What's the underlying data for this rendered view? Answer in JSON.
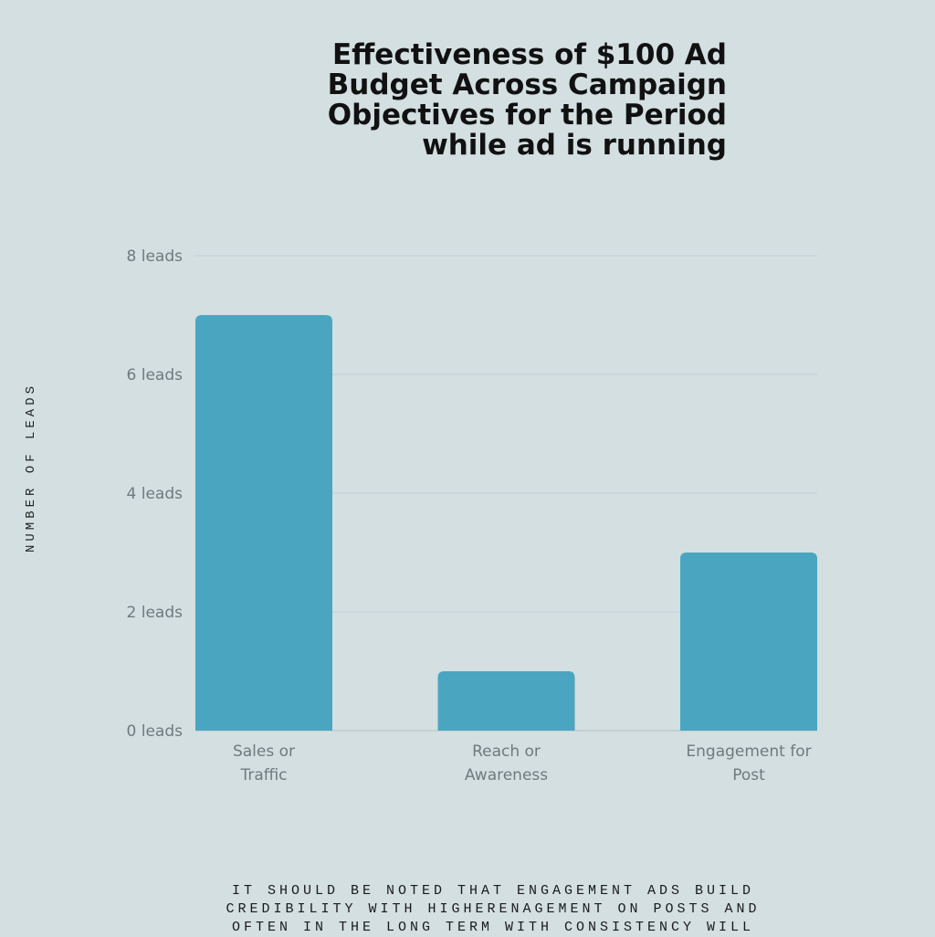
{
  "chart_data": {
    "type": "bar",
    "title_lines": [
      "Effectiveness of $100 Ad",
      "Budget Across Campaign",
      "Objectives for the Period",
      "while ad is running"
    ],
    "ylabel": "NUMBER OF LEADS",
    "categories": [
      [
        "Sales or",
        "Traffic"
      ],
      [
        "Reach or",
        "Awareness"
      ],
      [
        "Engagement for",
        "Post"
      ]
    ],
    "values": [
      7,
      1,
      3
    ],
    "ylim": [
      0,
      8
    ],
    "yticks": [
      {
        "value": 0,
        "label": "0 leads"
      },
      {
        "value": 2,
        "label": "2 leads"
      },
      {
        "value": 4,
        "label": "4 leads"
      },
      {
        "value": 6,
        "label": "6 leads"
      },
      {
        "value": 8,
        "label": "8 leads"
      }
    ],
    "grid": true,
    "bar_color": "#4aa6c0"
  },
  "footnote_lines": [
    "IT SHOULD BE NOTED THAT ENGAGEMENT ADS BUILD",
    "CREDIBILITY WITH HIGHERENAGEMENT ON POSTS AND",
    "OFTEN IN THE LONG TERM WITH CONSISTENCY WILL"
  ]
}
